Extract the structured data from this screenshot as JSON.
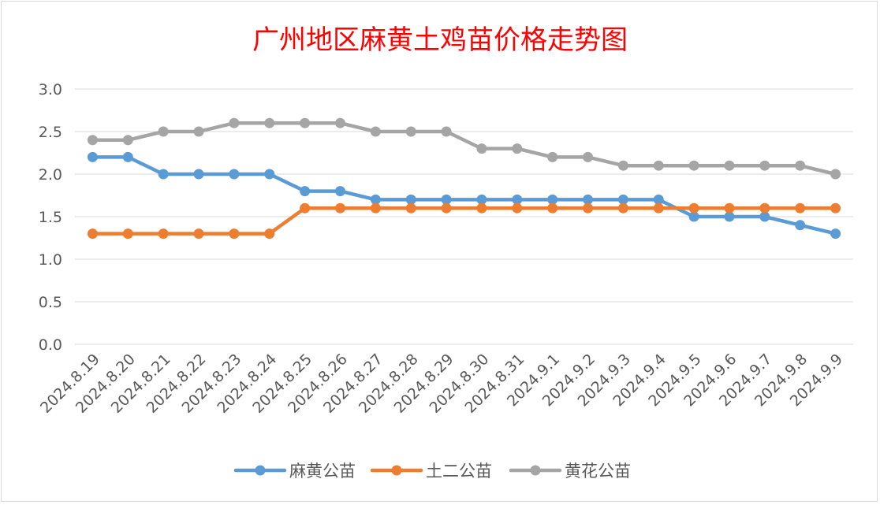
{
  "chart_data": {
    "type": "line",
    "title": "广州地区麻黄土鸡苗价格走势图",
    "xlabel": "",
    "ylabel": "",
    "categories": [
      "2024.8.19",
      "2024.8.20",
      "2024.8.21",
      "2024.8.22",
      "2024.8.23",
      "2024.8.24",
      "2024.8.25",
      "2024.8.26",
      "2024.8.27",
      "2024.8.28",
      "2024.8.29",
      "2024.8.30",
      "2024.8.31",
      "2024.9.1",
      "2024.9.2",
      "2024.9.3",
      "2024.9.4",
      "2024.9.5",
      "2024.9.6",
      "2024.9.7",
      "2024.9.8",
      "2024.9.9"
    ],
    "ylim": [
      0,
      3.0
    ],
    "yticks": [
      "0.0",
      "0.5",
      "1.0",
      "1.5",
      "2.0",
      "2.5",
      "3.0"
    ],
    "grid": true,
    "legend_position": "bottom",
    "series": [
      {
        "name": "麻黄公苗",
        "color": "#5b9bd5",
        "values": [
          2.2,
          2.2,
          2.0,
          2.0,
          2.0,
          2.0,
          1.8,
          1.8,
          1.7,
          1.7,
          1.7,
          1.7,
          1.7,
          1.7,
          1.7,
          1.7,
          1.7,
          1.5,
          1.5,
          1.5,
          1.4,
          1.3
        ]
      },
      {
        "name": "土二公苗",
        "color": "#ed7d31",
        "values": [
          1.3,
          1.3,
          1.3,
          1.3,
          1.3,
          1.3,
          1.6,
          1.6,
          1.6,
          1.6,
          1.6,
          1.6,
          1.6,
          1.6,
          1.6,
          1.6,
          1.6,
          1.6,
          1.6,
          1.6,
          1.6,
          1.6
        ]
      },
      {
        "name": "黄花公苗",
        "color": "#a5a5a5",
        "values": [
          2.4,
          2.4,
          2.5,
          2.5,
          2.6,
          2.6,
          2.6,
          2.6,
          2.5,
          2.5,
          2.5,
          2.3,
          2.3,
          2.2,
          2.2,
          2.1,
          2.1,
          2.1,
          2.1,
          2.1,
          2.1,
          2.0
        ]
      }
    ]
  }
}
